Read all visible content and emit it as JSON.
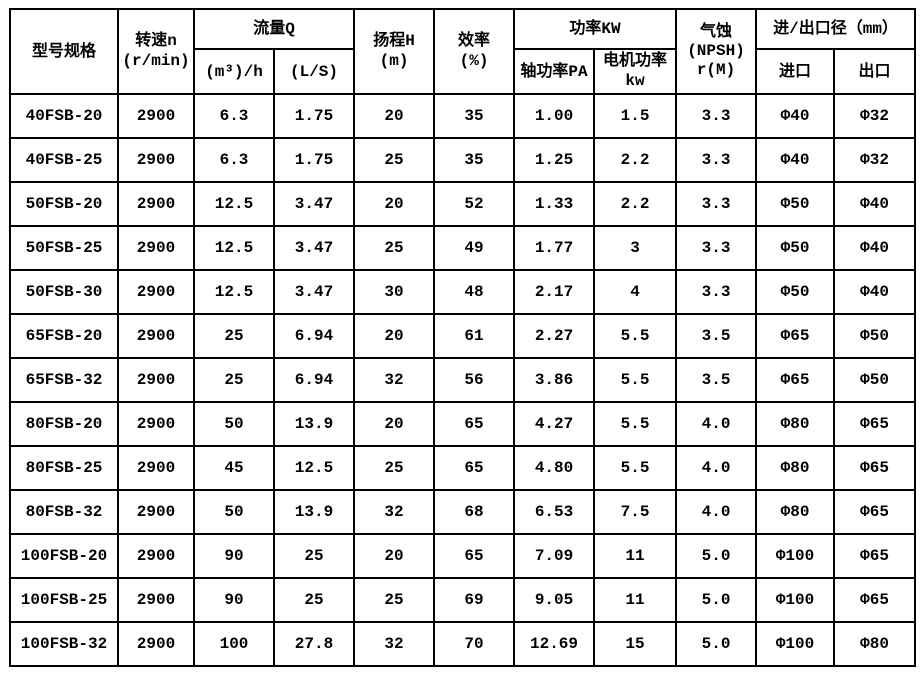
{
  "page": {
    "background_color": "#ffffff",
    "border_color": "#000000",
    "text_color": "#000000"
  },
  "table": {
    "header": {
      "model": "型号规格",
      "speed": [
        "转速n",
        "(r/min)"
      ],
      "flow": "流量Q",
      "flow_sub": [
        "(m³)/h",
        "(L/S)"
      ],
      "head": [
        "扬程H",
        "(m)"
      ],
      "efficiency": [
        "效率",
        "(%)"
      ],
      "power": "功率KW",
      "power_sub_shaft": "轴功率PA",
      "power_sub_motor": [
        "电机功率",
        "kw"
      ],
      "npsh": [
        "气蚀",
        "(NPSH)",
        "r(M)"
      ],
      "inlet_outlet": "进/出口径（mm）",
      "inlet": "进口",
      "outlet": "出口"
    },
    "rows": [
      [
        "40FSB-20",
        "2900",
        "6.3",
        "1.75",
        "20",
        "35",
        "1.00",
        "1.5",
        "3.3",
        "Φ40",
        "Φ32"
      ],
      [
        "40FSB-25",
        "2900",
        "6.3",
        "1.75",
        "25",
        "35",
        "1.25",
        "2.2",
        "3.3",
        "Φ40",
        "Φ32"
      ],
      [
        "50FSB-20",
        "2900",
        "12.5",
        "3.47",
        "20",
        "52",
        "1.33",
        "2.2",
        "3.3",
        "Φ50",
        "Φ40"
      ],
      [
        "50FSB-25",
        "2900",
        "12.5",
        "3.47",
        "25",
        "49",
        "1.77",
        "3",
        "3.3",
        "Φ50",
        "Φ40"
      ],
      [
        "50FSB-30",
        "2900",
        "12.5",
        "3.47",
        "30",
        "48",
        "2.17",
        "4",
        "3.3",
        "Φ50",
        "Φ40"
      ],
      [
        "65FSB-20",
        "2900",
        "25",
        "6.94",
        "20",
        "61",
        "2.27",
        "5.5",
        "3.5",
        "Φ65",
        "Φ50"
      ],
      [
        "65FSB-32",
        "2900",
        "25",
        "6.94",
        "32",
        "56",
        "3.86",
        "5.5",
        "3.5",
        "Φ65",
        "Φ50"
      ],
      [
        "80FSB-20",
        "2900",
        "50",
        "13.9",
        "20",
        "65",
        "4.27",
        "5.5",
        "4.0",
        "Φ80",
        "Φ65"
      ],
      [
        "80FSB-25",
        "2900",
        "45",
        "12.5",
        "25",
        "65",
        "4.80",
        "5.5",
        "4.0",
        "Φ80",
        "Φ65"
      ],
      [
        "80FSB-32",
        "2900",
        "50",
        "13.9",
        "32",
        "68",
        "6.53",
        "7.5",
        "4.0",
        "Φ80",
        "Φ65"
      ],
      [
        "100FSB-20",
        "2900",
        "90",
        "25",
        "20",
        "65",
        "7.09",
        "11",
        "5.0",
        "Φ100",
        "Φ65"
      ],
      [
        "100FSB-25",
        "2900",
        "90",
        "25",
        "25",
        "69",
        "9.05",
        "11",
        "5.0",
        "Φ100",
        "Φ65"
      ],
      [
        "100FSB-32",
        "2900",
        "100",
        "27.8",
        "32",
        "70",
        "12.69",
        "15",
        "5.0",
        "Φ100",
        "Φ80"
      ]
    ]
  }
}
